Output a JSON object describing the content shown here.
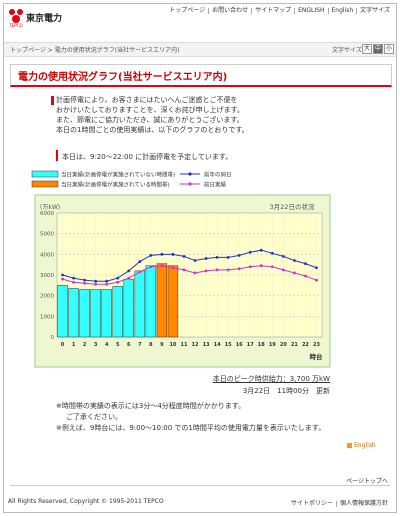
{
  "header": {
    "logo": "東京電力",
    "nav": [
      "トップページ",
      "お問い合わせ",
      "サイトマップ",
      "ENGLISH",
      "English",
      "文字サイズ"
    ]
  },
  "breadcrumb": {
    "path": "トップページ > 電力の使用状況グラフ(当社サービスエリア内)",
    "font_size_label": "文字サイズ",
    "font_sizes": [
      "大",
      "中",
      "小"
    ]
  },
  "title": "電力の使用状況グラフ(当社サービスエリア内)",
  "intro": [
    "計画停電により、お客さまにはたいへんご迷惑とご不便を",
    "おかけいたしておりますことを、深くお詫び申し上げます。",
    "また、節電にご協力いただき、誠にありがとうございます。",
    "本日の1時間ごとの使用実績は、以下のグラフのとおりです。"
  ],
  "notice": "本日は、9:20～22:00 に計画停電を予定しています。",
  "chart_data": {
    "type": "bar_line",
    "title": "3月22日の状況",
    "y_label": "(万kW)",
    "x_label": "時台",
    "categories": [
      "0",
      "1",
      "2",
      "3",
      "4",
      "5",
      "6",
      "7",
      "8",
      "9",
      "10",
      "11",
      "12",
      "13",
      "14",
      "15",
      "16",
      "17",
      "18",
      "19",
      "20",
      "21",
      "22",
      "23"
    ],
    "ylim": [
      0,
      6000
    ],
    "yticks": [
      0,
      1000,
      2000,
      3000,
      4000,
      5000,
      6000
    ],
    "grid": true,
    "series": [
      {
        "name": "当日実績(計画停電が実施されていない時間帯)",
        "kind": "bar",
        "color": "#33ffff",
        "values": [
          2500,
          2350,
          2300,
          2300,
          2300,
          2450,
          2800,
          3200,
          3450,
          null,
          null,
          null,
          null,
          null,
          null,
          null,
          null,
          null,
          null,
          null,
          null,
          null,
          null,
          null
        ]
      },
      {
        "name": "当日実績(計画停電が実施されている時間帯)",
        "kind": "bar",
        "color": "#ff8800",
        "values": [
          null,
          null,
          null,
          null,
          null,
          null,
          null,
          null,
          null,
          3550,
          3450,
          null,
          null,
          null,
          null,
          null,
          null,
          null,
          null,
          null,
          null,
          null,
          null,
          null
        ]
      },
      {
        "name": "前年の同日",
        "kind": "line",
        "color": "#2233cc",
        "values": [
          3000,
          2850,
          2750,
          2700,
          2700,
          2850,
          3200,
          3650,
          3950,
          4000,
          4000,
          3900,
          3700,
          3800,
          3850,
          3850,
          3950,
          4100,
          4200,
          4050,
          3900,
          3700,
          3550,
          3350
        ]
      },
      {
        "name": "前日実績",
        "kind": "line",
        "color": "#cc33cc",
        "values": [
          2800,
          2650,
          2600,
          2550,
          2550,
          2650,
          2850,
          3150,
          3400,
          3450,
          3350,
          3250,
          3100,
          3200,
          3250,
          3250,
          3300,
          3400,
          3450,
          3400,
          3250,
          3100,
          2950,
          2750
        ]
      }
    ]
  },
  "peak": "本日のピーク時供給力：3,700 万kW",
  "updated": "3月22日　11時00分　更新",
  "notes": [
    "※時間帯の実績の表示には3分～4分程度時間がかかります。",
    "ご了承ください。",
    "※例えば、9時台には、9:00～10:00 での1時間平均の使用電力量を表示いたします。"
  ],
  "english_link": "English",
  "footer": {
    "page_top": "ページトップへ",
    "copyright": "All Rights Reserved, Copyright © 1995-2011 TEPCO",
    "links": [
      "サイトポリシー",
      "個人情報保護方針"
    ]
  }
}
